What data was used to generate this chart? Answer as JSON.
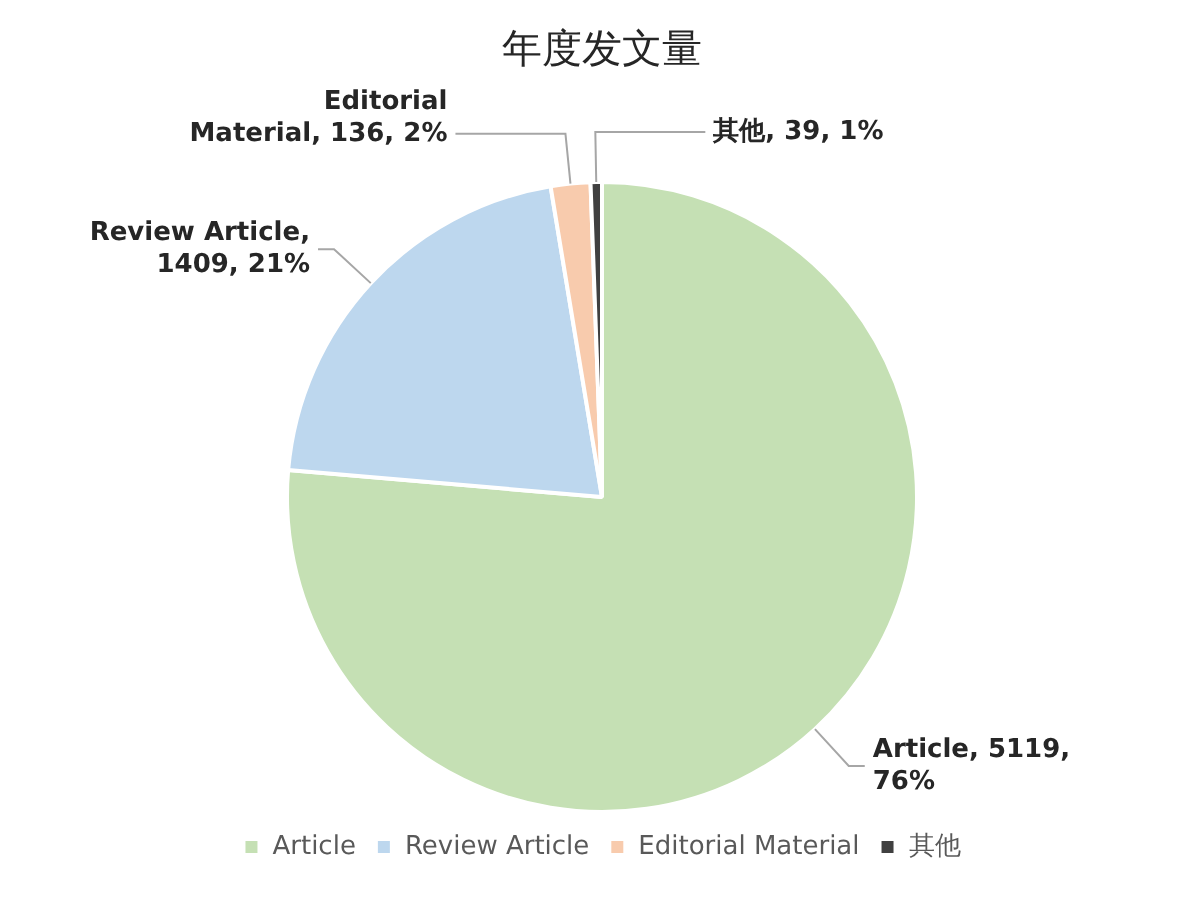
{
  "chart_data": {
    "type": "pie",
    "title": "年度发文量",
    "categories": [
      "Article",
      "Review Article",
      "Editorial Material",
      "其他"
    ],
    "values": [
      5119,
      1409,
      136,
      39
    ],
    "colors": [
      "#c5e0b4",
      "#bdd7ee",
      "#f8cbad",
      "#404040"
    ],
    "value_labels": [
      "Article, 5119, 76%",
      "Review Article, 1409, 21%",
      "Editorial Material, 136, 2%",
      "其他, 39, 1%"
    ],
    "legend": "bottom"
  }
}
